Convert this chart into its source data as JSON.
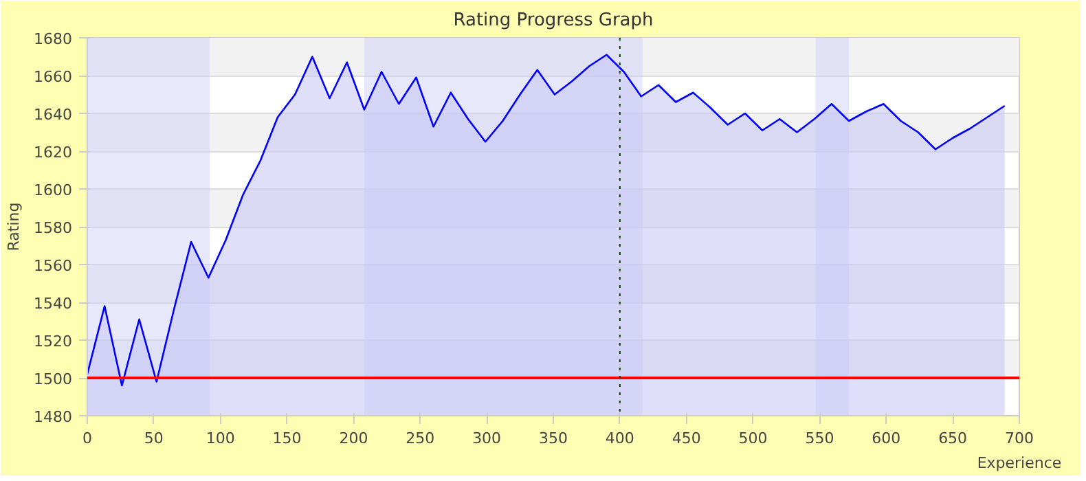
{
  "chart_data": {
    "type": "area",
    "title": "Rating Progress Graph",
    "xlabel": "Experience",
    "ylabel": "Rating",
    "x": [
      0,
      13,
      26,
      39,
      52,
      65,
      78,
      91,
      104,
      117,
      130,
      143,
      156,
      169,
      182,
      195,
      208,
      221,
      234,
      247,
      260,
      273,
      286,
      299,
      312,
      325,
      338,
      351,
      364,
      377,
      390,
      403,
      416,
      429,
      442,
      455,
      468,
      481,
      494,
      507,
      520,
      533,
      546,
      559,
      572,
      585,
      598,
      611,
      624,
      637,
      650,
      663,
      676,
      689
    ],
    "series": [
      {
        "color": "#0000ff",
        "values": [
          1502,
          1538,
          1496,
          1531,
          1498,
          1536,
          1572,
          1553,
          1573,
          1597,
          1615,
          1638,
          1650,
          1670,
          1648,
          1667,
          1642,
          1662,
          1645,
          1659,
          1633,
          1651,
          1637,
          1625,
          1636,
          1650,
          1663,
          1650,
          1657,
          1665,
          1671,
          1662,
          1649,
          1655,
          1646,
          1651,
          1643,
          1634,
          1640,
          1631,
          1637,
          1630,
          1637,
          1645,
          1636,
          1641,
          1645,
          1636,
          1630,
          1621,
          1627,
          1632,
          1638,
          1644
        ]
      }
    ],
    "xlim": [
      0,
      700
    ],
    "ylim": [
      1480,
      1680
    ],
    "xticks": [
      0,
      50,
      100,
      150,
      200,
      250,
      300,
      350,
      400,
      450,
      500,
      550,
      600,
      650,
      700
    ],
    "yticks": [
      1480,
      1500,
      1520,
      1540,
      1560,
      1580,
      1600,
      1620,
      1640,
      1660,
      1680
    ],
    "grid": "y",
    "ref_lines": [
      {
        "axis": "y",
        "value": 1500,
        "color": "#ff0000",
        "line_style": "solid"
      },
      {
        "axis": "x",
        "value": 400,
        "color": "#004400",
        "line_style": "dotted"
      }
    ],
    "bands": [
      {
        "axis": "x",
        "from": 0,
        "to": 92,
        "color": "#ccccf8"
      },
      {
        "axis": "x",
        "from": 208,
        "to": 417,
        "color": "#ccccf8"
      },
      {
        "axis": "x",
        "from": 547,
        "to": 572,
        "color": "#ccccf8"
      }
    ]
  }
}
